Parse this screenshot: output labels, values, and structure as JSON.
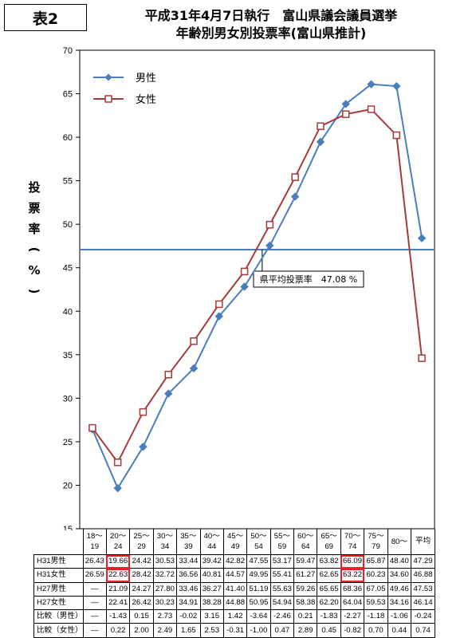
{
  "label_box": "表2",
  "title_line1": "平成31年4月7日執行　富山県議会議員選挙",
  "title_line2": "年齢別男女別投票率(富山県推計)",
  "ylabel_chars": [
    "投",
    "票",
    "率",
    "(",
    "%",
    ")"
  ],
  "colors": {
    "male": "#4a7ebb",
    "female": "#a83a3a",
    "avg_line": "#4a7ebb",
    "highlight": "#e8202a"
  },
  "chart_data": {
    "type": "line",
    "categories": [
      {
        "top": "18～",
        "bottom": "19"
      },
      {
        "top": "20～",
        "bottom": "24"
      },
      {
        "top": "25～",
        "bottom": "29"
      },
      {
        "top": "30～",
        "bottom": "34"
      },
      {
        "top": "35～",
        "bottom": "39"
      },
      {
        "top": "40～",
        "bottom": "44"
      },
      {
        "top": "45～",
        "bottom": "49"
      },
      {
        "top": "50～",
        "bottom": "54"
      },
      {
        "top": "55～",
        "bottom": "59"
      },
      {
        "top": "60～",
        "bottom": "64"
      },
      {
        "top": "65～",
        "bottom": "69"
      },
      {
        "top": "70～",
        "bottom": "74"
      },
      {
        "top": "75～",
        "bottom": "79"
      },
      {
        "top": "80～",
        "bottom": ""
      }
    ],
    "series": [
      {
        "name": "男性",
        "marker": "diamond",
        "values": [
          26.43,
          19.66,
          24.42,
          30.53,
          33.44,
          39.42,
          42.82,
          47.55,
          53.17,
          59.47,
          63.82,
          66.09,
          65.87,
          48.4
        ]
      },
      {
        "name": "女性",
        "marker": "square",
        "values": [
          26.59,
          22.63,
          28.42,
          32.72,
          36.56,
          40.81,
          44.57,
          49.95,
          55.41,
          61.27,
          62.65,
          63.22,
          60.23,
          34.6
        ]
      }
    ],
    "average": {
      "value": 47.08,
      "label": "県平均投票率　47.08 %"
    },
    "ylim": [
      15,
      70
    ],
    "yticks": [
      15,
      20,
      25,
      30,
      35,
      40,
      45,
      50,
      55,
      60,
      65,
      70
    ],
    "legend_position": "top-left",
    "grid": false
  },
  "table": {
    "avg_header": "平均",
    "rows": [
      {
        "label": "H31男性",
        "values": [
          "26.43",
          "19.66",
          "24.42",
          "30.53",
          "33.44",
          "39.42",
          "42.82",
          "47.55",
          "53.17",
          "59.47",
          "63.82",
          "66.09",
          "65.87",
          "48.40",
          "47.29"
        ],
        "highlight": [
          1,
          11
        ]
      },
      {
        "label": "H31女性",
        "values": [
          "26.59",
          "22.63",
          "28.42",
          "32.72",
          "36.56",
          "40.81",
          "44.57",
          "49.95",
          "55.41",
          "61.27",
          "62.65",
          "63.22",
          "60.23",
          "34.60",
          "46.88"
        ],
        "highlight": [
          1,
          11
        ]
      },
      {
        "label": "H27男性",
        "values": [
          "―",
          "21.09",
          "24.27",
          "27.80",
          "33.46",
          "36.27",
          "41.40",
          "51.19",
          "55.63",
          "59.26",
          "65.65",
          "68.36",
          "67.05",
          "49.46",
          "47.53"
        ],
        "highlight": []
      },
      {
        "label": "H27女性",
        "values": [
          "―",
          "22.41",
          "26.42",
          "30.23",
          "34.91",
          "38.28",
          "44.88",
          "50.95",
          "54.94",
          "58.38",
          "62.20",
          "64.04",
          "59.53",
          "34.16",
          "46.14"
        ],
        "highlight": []
      },
      {
        "label": "比較（男性）",
        "values": [
          "―",
          "-1.43",
          "0.15",
          "2.73",
          "-0.02",
          "3.15",
          "1.42",
          "-3.64",
          "-2.46",
          "0.21",
          "-1.83",
          "-2.27",
          "-1.18",
          "-1.06",
          "-0.24"
        ],
        "highlight": []
      },
      {
        "label": "比較（女性）",
        "values": [
          "―",
          "0.22",
          "2.00",
          "2.49",
          "1.65",
          "2.53",
          "-0.31",
          "-1.00",
          "0.47",
          "2.89",
          "0.45",
          "-0.82",
          "0.70",
          "0.44",
          "0.74"
        ],
        "highlight": []
      }
    ]
  }
}
